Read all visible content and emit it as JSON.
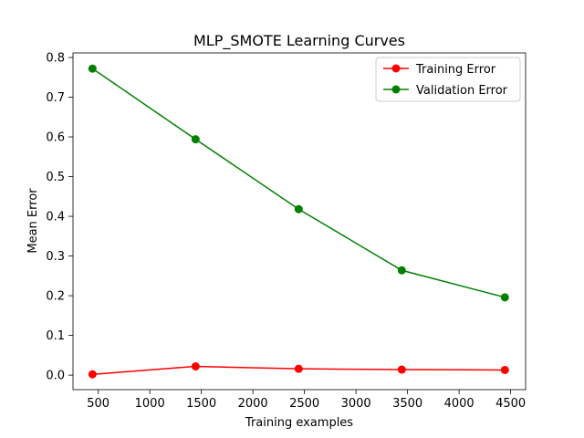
{
  "chart_data": {
    "type": "line",
    "title": "MLP_SMOTE Learning Curves",
    "xlabel": "Training examples",
    "ylabel": "Mean Error",
    "xlim": [
      255,
      4645
    ],
    "ylim": [
      -0.0365,
      0.8115
    ],
    "xticks": [
      500,
      1000,
      1500,
      2000,
      2500,
      3000,
      3500,
      4000,
      4500
    ],
    "xtick_labels": [
      "500",
      "1000",
      "1500",
      "2000",
      "2500",
      "3000",
      "3500",
      "4000",
      "4500"
    ],
    "yticks": [
      0.0,
      0.1,
      0.2,
      0.3,
      0.4,
      0.5,
      0.6,
      0.7,
      0.8
    ],
    "ytick_labels": [
      "0.0",
      "0.1",
      "0.2",
      "0.3",
      "0.4",
      "0.5",
      "0.6",
      "0.7",
      "0.8"
    ],
    "grid": false,
    "legend_position": "top-right",
    "x": [
      444,
      1444,
      2444,
      3444,
      4444
    ],
    "series": [
      {
        "name": "Training Error",
        "color": "#ff0000",
        "marker": "circle",
        "values": [
          0.002,
          0.022,
          0.016,
          0.014,
          0.013
        ]
      },
      {
        "name": "Validation Error",
        "color": "#008000",
        "marker": "circle",
        "values": [
          0.772,
          0.594,
          0.418,
          0.264,
          0.196
        ]
      }
    ]
  }
}
